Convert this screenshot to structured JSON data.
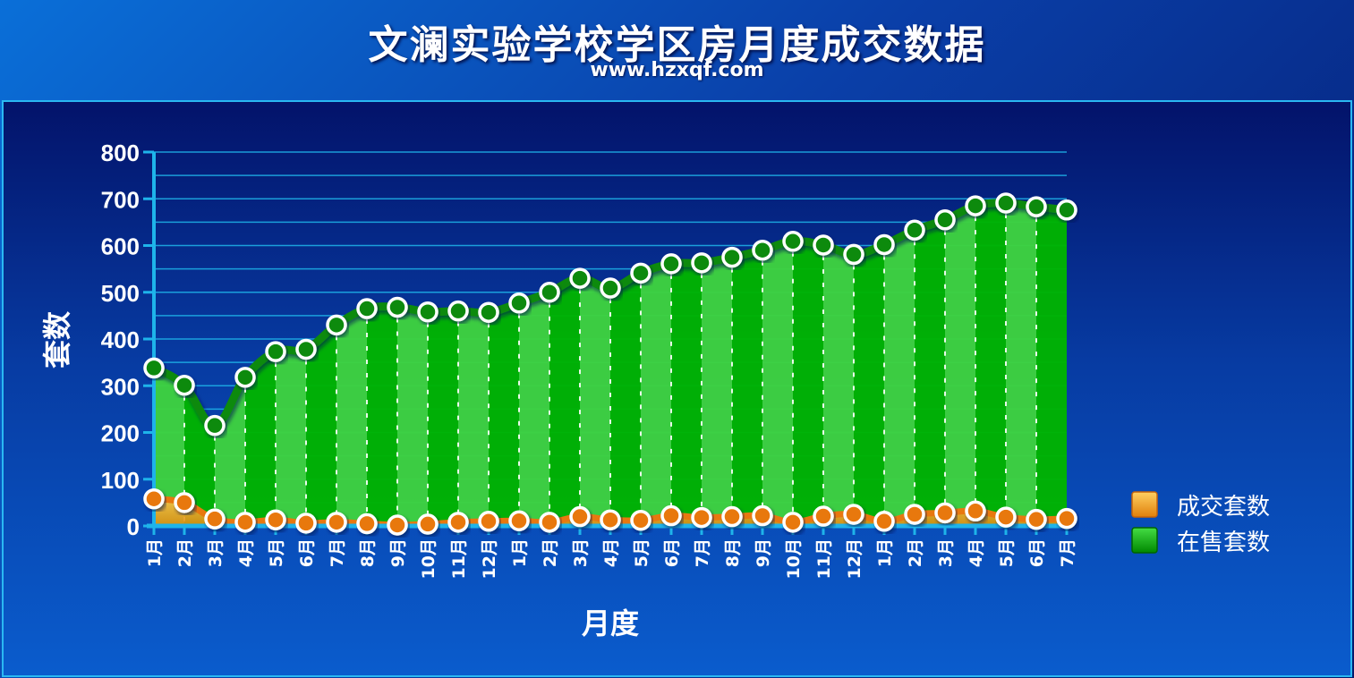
{
  "header": {
    "title": "文澜实验学校学区房月度成交数据",
    "subtitle": "www.hzxqf.com"
  },
  "colors": {
    "sale_fill": "#00b400",
    "sale_fill_light": "#55dd55",
    "sale_line": "#0a8a0a",
    "deal_fill": "#f4a51c",
    "deal_line": "#e8780f",
    "grid": "#1eb4ea"
  },
  "chart_data": {
    "type": "area",
    "xlabel": "月度",
    "ylabel": "套数",
    "ylim": [
      0,
      800
    ],
    "yticks": [
      0,
      100,
      200,
      300,
      400,
      500,
      600,
      700,
      800
    ],
    "grid": true,
    "legend_position": "right",
    "categories": [
      "1月",
      "2月",
      "3月",
      "4月",
      "5月",
      "6月",
      "7月",
      "8月",
      "9月",
      "10月",
      "11月",
      "12月",
      "1月",
      "2月",
      "3月",
      "4月",
      "5月",
      "6月",
      "7月",
      "8月",
      "9月",
      "10月",
      "11月",
      "12月",
      "1月",
      "2月",
      "3月",
      "4月",
      "5月",
      "6月",
      "7月"
    ],
    "series": [
      {
        "name": "成交套数",
        "values": [
          58,
          50,
          15,
          8,
          13,
          6,
          8,
          5,
          2,
          4,
          8,
          10,
          11,
          8,
          20,
          13,
          12,
          22,
          18,
          20,
          22,
          8,
          21,
          25,
          10,
          25,
          28,
          32,
          19,
          14,
          16
        ]
      },
      {
        "name": "在售套数",
        "values": [
          338,
          301,
          215,
          318,
          373,
          378,
          430,
          465,
          468,
          458,
          460,
          457,
          477,
          500,
          530,
          509,
          541,
          561,
          563,
          575,
          590,
          609,
          601,
          581,
          602,
          633,
          655,
          685,
          691,
          683,
          676
        ]
      }
    ]
  }
}
